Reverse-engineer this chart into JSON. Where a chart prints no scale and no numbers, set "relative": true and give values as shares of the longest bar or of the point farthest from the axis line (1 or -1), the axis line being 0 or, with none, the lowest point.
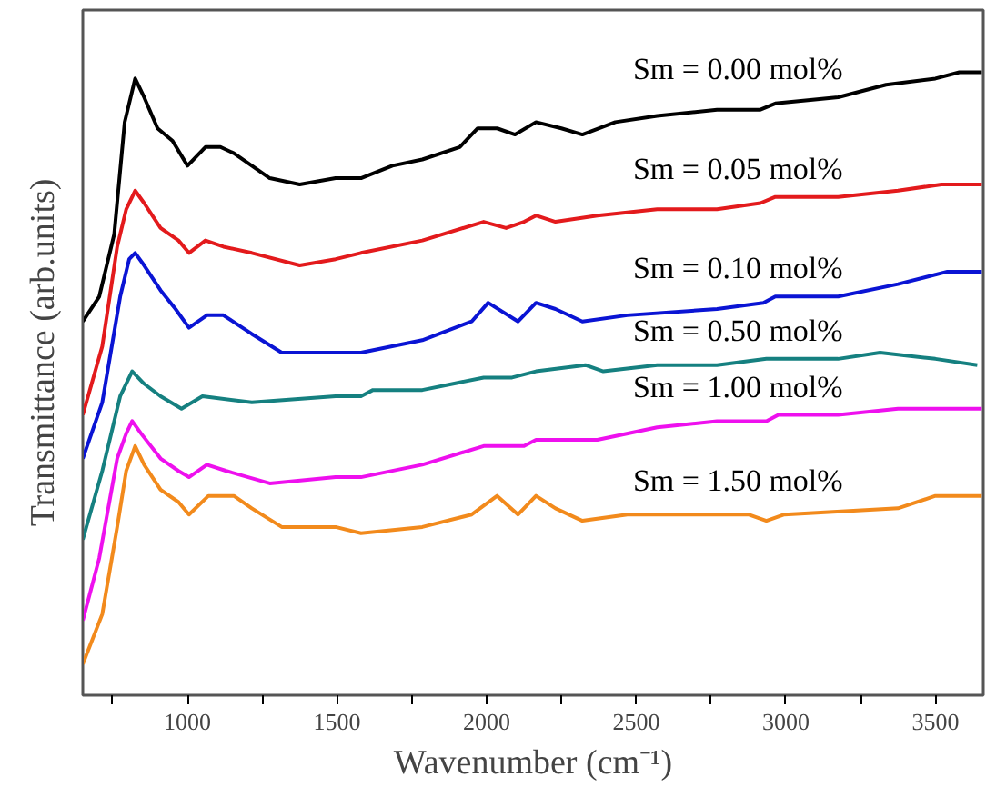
{
  "chart_data": {
    "type": "line",
    "relative": true,
    "xlabel": "Wavenumber (cm⁻¹)",
    "ylabel": "Transmittance (arb.units)",
    "xlim": [
      650,
      3660
    ],
    "xticks": [
      {
        "value": 750,
        "label": null
      },
      1000,
      {
        "value": 1250,
        "label": null
      },
      1500,
      {
        "value": 1750,
        "label": null
      },
      2000,
      {
        "value": 2250,
        "label": null
      },
      2500,
      {
        "value": 2750,
        "label": null
      },
      3000,
      {
        "value": 3250,
        "label": null
      },
      3500
    ],
    "tick_labels": "x",
    "grid": false,
    "legend": false,
    "line_style": "solid",
    "marker": "none",
    "series": [
      {
        "name": "Sm = 0.00 mol%",
        "color": "#000000",
        "x": [
          650,
          705,
          755,
          790,
          825,
          855,
          900,
          950,
          1000,
          1060,
          1110,
          1155,
          1215,
          1275,
          1375,
          1495,
          1580,
          1685,
          1785,
          1910,
          1970,
          2035,
          2095,
          2165,
          2250,
          2320,
          2430,
          2570,
          2770,
          2915,
          2965,
          3175,
          3335,
          3500,
          3580,
          3655
        ],
        "values": [
          0.6,
          0.64,
          0.74,
          0.92,
          0.99,
          0.96,
          0.91,
          0.89,
          0.85,
          0.88,
          0.88,
          0.87,
          0.85,
          0.83,
          0.82,
          0.83,
          0.83,
          0.85,
          0.86,
          0.88,
          0.91,
          0.91,
          0.9,
          0.92,
          0.91,
          0.9,
          0.92,
          0.93,
          0.94,
          0.94,
          0.95,
          0.96,
          0.98,
          0.99,
          1.0,
          1.0
        ]
      },
      {
        "name": "Sm = 0.05 mol%",
        "color": "#e31a1c",
        "x": [
          650,
          715,
          765,
          795,
          825,
          855,
          910,
          970,
          1005,
          1060,
          1120,
          1215,
          1375,
          1495,
          1580,
          1785,
          1990,
          2065,
          2125,
          2165,
          2230,
          2370,
          2570,
          2770,
          2915,
          2965,
          3175,
          3375,
          3520,
          3655
        ],
        "values": [
          0.45,
          0.56,
          0.72,
          0.78,
          0.81,
          0.79,
          0.75,
          0.73,
          0.71,
          0.73,
          0.72,
          0.71,
          0.69,
          0.7,
          0.71,
          0.73,
          0.76,
          0.75,
          0.76,
          0.77,
          0.76,
          0.77,
          0.78,
          0.78,
          0.79,
          0.8,
          0.8,
          0.81,
          0.82,
          0.82
        ]
      },
      {
        "name": "Sm = 0.10 mol%",
        "color": "#0a14d4",
        "x": [
          650,
          715,
          775,
          805,
          825,
          855,
          910,
          960,
          1005,
          1065,
          1120,
          1215,
          1315,
          1495,
          1580,
          1785,
          1950,
          2005,
          2105,
          2165,
          2230,
          2320,
          2470,
          2770,
          2925,
          2965,
          3175,
          3375,
          3540,
          3655
        ],
        "values": [
          0.38,
          0.47,
          0.64,
          0.7,
          0.71,
          0.69,
          0.65,
          0.62,
          0.59,
          0.61,
          0.61,
          0.58,
          0.55,
          0.55,
          0.55,
          0.57,
          0.6,
          0.63,
          0.6,
          0.63,
          0.62,
          0.6,
          0.61,
          0.62,
          0.63,
          0.64,
          0.64,
          0.66,
          0.68,
          0.68
        ]
      },
      {
        "name": "Sm = 0.50 mol%",
        "color": "#158080",
        "x": [
          650,
          715,
          775,
          815,
          855,
          910,
          980,
          1050,
          1215,
          1495,
          1580,
          1620,
          1785,
          1990,
          2085,
          2165,
          2330,
          2390,
          2570,
          2770,
          2935,
          3175,
          3315,
          3500,
          3640
        ],
        "values": [
          0.25,
          0.36,
          0.48,
          0.52,
          0.5,
          0.48,
          0.46,
          0.48,
          0.47,
          0.48,
          0.48,
          0.49,
          0.49,
          0.51,
          0.51,
          0.52,
          0.53,
          0.52,
          0.53,
          0.53,
          0.54,
          0.54,
          0.55,
          0.54,
          0.53
        ]
      },
      {
        "name": "Sm = 1.00 mol%",
        "color": "#ee10ee",
        "x": [
          650,
          705,
          765,
          795,
          815,
          845,
          910,
          970,
          1005,
          1065,
          1130,
          1275,
          1495,
          1580,
          1785,
          1990,
          2065,
          2125,
          2165,
          2370,
          2570,
          2770,
          2935,
          2975,
          3175,
          3375,
          3580,
          3655
        ],
        "values": [
          0.12,
          0.22,
          0.38,
          0.42,
          0.44,
          0.42,
          0.38,
          0.36,
          0.35,
          0.37,
          0.36,
          0.34,
          0.35,
          0.35,
          0.37,
          0.4,
          0.4,
          0.4,
          0.41,
          0.41,
          0.43,
          0.44,
          0.44,
          0.45,
          0.45,
          0.46,
          0.46,
          0.46
        ]
      },
      {
        "name": "Sm = 1.50 mol%",
        "color": "#f28a1c",
        "x": [
          650,
          715,
          765,
          795,
          825,
          855,
          910,
          970,
          1005,
          1070,
          1155,
          1215,
          1315,
          1495,
          1580,
          1785,
          1950,
          2035,
          2105,
          2165,
          2230,
          2320,
          2470,
          2670,
          2875,
          2935,
          2995,
          3375,
          3500,
          3655
        ],
        "values": [
          0.05,
          0.13,
          0.27,
          0.36,
          0.4,
          0.37,
          0.33,
          0.31,
          0.29,
          0.32,
          0.32,
          0.3,
          0.27,
          0.27,
          0.26,
          0.27,
          0.29,
          0.32,
          0.29,
          0.32,
          0.3,
          0.28,
          0.29,
          0.29,
          0.29,
          0.28,
          0.29,
          0.3,
          0.32,
          0.32
        ]
      }
    ]
  }
}
